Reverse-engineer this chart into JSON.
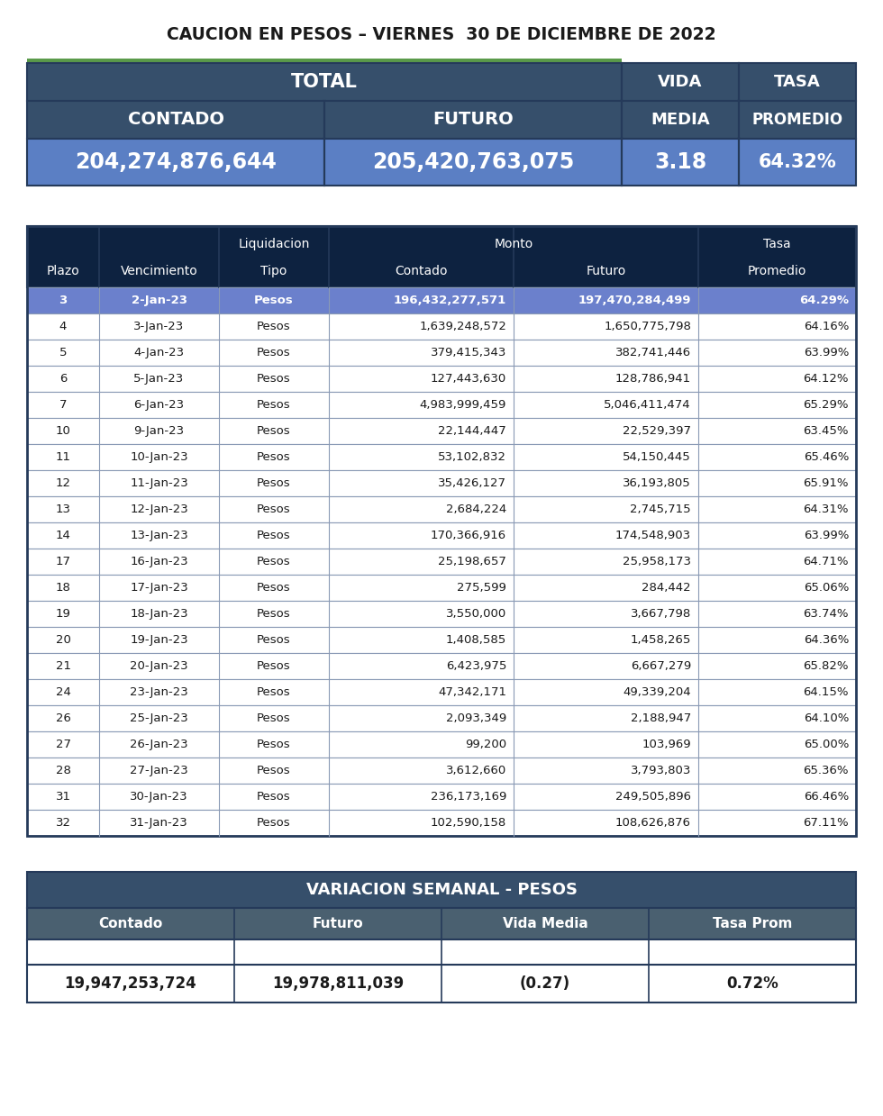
{
  "title": "CAUCION EN PESOS – VIERNES  30 DE DICIEMBRE DE 2022",
  "top_table": {
    "values": [
      "204,274,876,644",
      "205,420,763,075",
      "3.18",
      "64.32%"
    ],
    "header_bg": "#364f6b",
    "values_bg": "#5b7fc4",
    "green_accent": "#5a9a4a"
  },
  "main_table": {
    "header_bg": "#0d2240",
    "row1_bg": "#6b80cc",
    "row_bg": "#ffffff",
    "row_text_color": "#1a1a1a",
    "rows": [
      [
        "3",
        "2-Jan-23",
        "Pesos",
        "196,432,277,571",
        "197,470,284,499",
        "64.29%"
      ],
      [
        "4",
        "3-Jan-23",
        "Pesos",
        "1,639,248,572",
        "1,650,775,798",
        "64.16%"
      ],
      [
        "5",
        "4-Jan-23",
        "Pesos",
        "379,415,343",
        "382,741,446",
        "63.99%"
      ],
      [
        "6",
        "5-Jan-23",
        "Pesos",
        "127,443,630",
        "128,786,941",
        "64.12%"
      ],
      [
        "7",
        "6-Jan-23",
        "Pesos",
        "4,983,999,459",
        "5,046,411,474",
        "65.29%"
      ],
      [
        "10",
        "9-Jan-23",
        "Pesos",
        "22,144,447",
        "22,529,397",
        "63.45%"
      ],
      [
        "11",
        "10-Jan-23",
        "Pesos",
        "53,102,832",
        "54,150,445",
        "65.46%"
      ],
      [
        "12",
        "11-Jan-23",
        "Pesos",
        "35,426,127",
        "36,193,805",
        "65.91%"
      ],
      [
        "13",
        "12-Jan-23",
        "Pesos",
        "2,684,224",
        "2,745,715",
        "64.31%"
      ],
      [
        "14",
        "13-Jan-23",
        "Pesos",
        "170,366,916",
        "174,548,903",
        "63.99%"
      ],
      [
        "17",
        "16-Jan-23",
        "Pesos",
        "25,198,657",
        "25,958,173",
        "64.71%"
      ],
      [
        "18",
        "17-Jan-23",
        "Pesos",
        "275,599",
        "284,442",
        "65.06%"
      ],
      [
        "19",
        "18-Jan-23",
        "Pesos",
        "3,550,000",
        "3,667,798",
        "63.74%"
      ],
      [
        "20",
        "19-Jan-23",
        "Pesos",
        "1,408,585",
        "1,458,265",
        "64.36%"
      ],
      [
        "21",
        "20-Jan-23",
        "Pesos",
        "6,423,975",
        "6,667,279",
        "65.82%"
      ],
      [
        "24",
        "23-Jan-23",
        "Pesos",
        "47,342,171",
        "49,339,204",
        "64.15%"
      ],
      [
        "26",
        "25-Jan-23",
        "Pesos",
        "2,093,349",
        "2,188,947",
        "64.10%"
      ],
      [
        "27",
        "26-Jan-23",
        "Pesos",
        "99,200",
        "103,969",
        "65.00%"
      ],
      [
        "28",
        "27-Jan-23",
        "Pesos",
        "3,612,660",
        "3,793,803",
        "65.36%"
      ],
      [
        "31",
        "30-Jan-23",
        "Pesos",
        "236,173,169",
        "249,505,896",
        "66.46%"
      ],
      [
        "32",
        "31-Jan-23",
        "Pesos",
        "102,590,158",
        "108,626,876",
        "67.11%"
      ]
    ]
  },
  "bottom_table": {
    "header_row1": "VARIACION SEMANAL - PESOS",
    "header_row2": [
      "Contado",
      "Futuro",
      "Vida Media",
      "Tasa Prom"
    ],
    "values": [
      "19,947,253,724",
      "19,978,811,039",
      "(0.27)",
      "0.72%"
    ],
    "header_bg": "#364f6b",
    "subheader_bg": "#4a6070",
    "values_text_color": "#1a1a1a"
  }
}
